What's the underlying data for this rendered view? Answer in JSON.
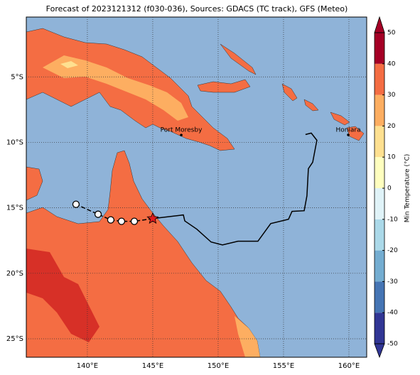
{
  "title": "Forecast of 2023121312 (f030-036), Sources: GDACS (TC track), GFS (Meteo)",
  "map": {
    "xlim": [
      135.33,
      161.36
    ],
    "ylim": [
      -26.41,
      -0.43
    ],
    "xticks": [
      {
        "value": 140,
        "label": "140°E"
      },
      {
        "value": 145,
        "label": "145°E"
      },
      {
        "value": 150,
        "label": "150°E"
      },
      {
        "value": 155,
        "label": "155°E"
      },
      {
        "value": 160,
        "label": "160°E"
      }
    ],
    "yticks": [
      {
        "value": -5,
        "label": "5°S"
      },
      {
        "value": -10,
        "label": "10°S"
      },
      {
        "value": -15,
        "label": "15°S"
      },
      {
        "value": -20,
        "label": "20°S"
      },
      {
        "value": -25,
        "label": "25°S"
      }
    ],
    "grid": true
  },
  "places": [
    {
      "name": "Port Moresby",
      "lon": 147.18,
      "lat": -9.44
    },
    {
      "name": "Honiara",
      "lon": 159.95,
      "lat": -9.43
    }
  ],
  "track": {
    "lon": [
      156.68,
      157.12,
      157.55,
      157.23,
      156.9,
      156.79,
      156.58,
      155.65,
      155.38,
      154.02,
      153.04,
      151.52,
      150.33,
      149.46,
      148.37,
      147.45,
      147.34,
      145.0
    ],
    "lat": [
      -9.4,
      -9.29,
      -9.84,
      -11.52,
      -12.01,
      -14.08,
      -15.22,
      -15.27,
      -15.87,
      -16.2,
      -17.55,
      -17.55,
      -17.83,
      -17.61,
      -16.63,
      -16.0,
      -15.54,
      -15.82
    ]
  },
  "forecast": {
    "lon": [
      145.0,
      143.59,
      142.61,
      141.79,
      140.82,
      139.13
    ],
    "lat": [
      -15.82,
      -16.03,
      -16.03,
      -15.92,
      -15.49,
      -14.73
    ]
  },
  "colorbar": {
    "label": "Min Temperature (°C)",
    "lim": [
      -50,
      50
    ],
    "ticks": [
      -50,
      -40,
      -30,
      -20,
      -10,
      0,
      10,
      20,
      30,
      40,
      50
    ],
    "colors": [
      "#313695",
      "#4575b4",
      "#74add1",
      "#abd9e9",
      "#e0f3f8",
      "#ffffbf",
      "#fee090",
      "#fdae61",
      "#f46d43",
      "#a50026"
    ]
  }
}
